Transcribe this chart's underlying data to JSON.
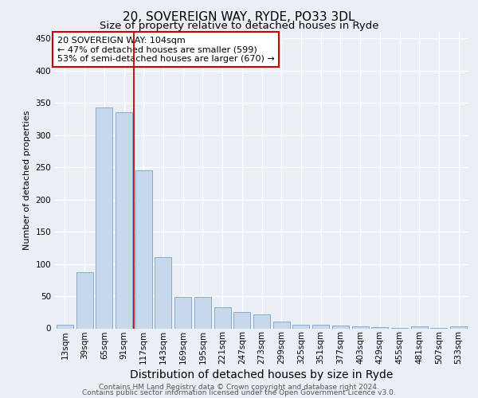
{
  "title1": "20, SOVEREIGN WAY, RYDE, PO33 3DL",
  "title2": "Size of property relative to detached houses in Ryde",
  "xlabel": "Distribution of detached houses by size in Ryde",
  "ylabel": "Number of detached properties",
  "categories": [
    "13sqm",
    "39sqm",
    "65sqm",
    "91sqm",
    "117sqm",
    "143sqm",
    "169sqm",
    "195sqm",
    "221sqm",
    "247sqm",
    "273sqm",
    "299sqm",
    "325sqm",
    "351sqm",
    "377sqm",
    "403sqm",
    "429sqm",
    "455sqm",
    "481sqm",
    "507sqm",
    "533sqm"
  ],
  "values": [
    5,
    87,
    343,
    335,
    245,
    110,
    49,
    49,
    33,
    25,
    22,
    10,
    5,
    5,
    4,
    3,
    2,
    1,
    3,
    1,
    3
  ],
  "bar_color": "#c8d8eb",
  "bar_edge_color": "#88aacb",
  "bar_linewidth": 0.7,
  "vline_x": 3.5,
  "vline_color": "#cc0000",
  "vline_linewidth": 1.3,
  "annotation_line1": "20 SOVEREIGN WAY: 104sqm",
  "annotation_line2": "← 47% of detached houses are smaller (599)",
  "annotation_line3": "53% of semi-detached houses are larger (670) →",
  "annotation_box_color": "#ffffff",
  "annotation_box_edge": "#cc0000",
  "ylim": [
    0,
    460
  ],
  "yticks": [
    0,
    50,
    100,
    150,
    200,
    250,
    300,
    350,
    400,
    450
  ],
  "bg_color": "#eaeff5",
  "plot_bg_color": "#eaeff5",
  "footer1": "Contains HM Land Registry data © Crown copyright and database right 2024.",
  "footer2": "Contains public sector information licensed under the Open Government Licence v3.0.",
  "title1_fontsize": 11,
  "title2_fontsize": 9.5,
  "xlabel_fontsize": 10,
  "ylabel_fontsize": 8,
  "tick_fontsize": 7.5,
  "annotation_fontsize": 8,
  "footer_fontsize": 6.5
}
